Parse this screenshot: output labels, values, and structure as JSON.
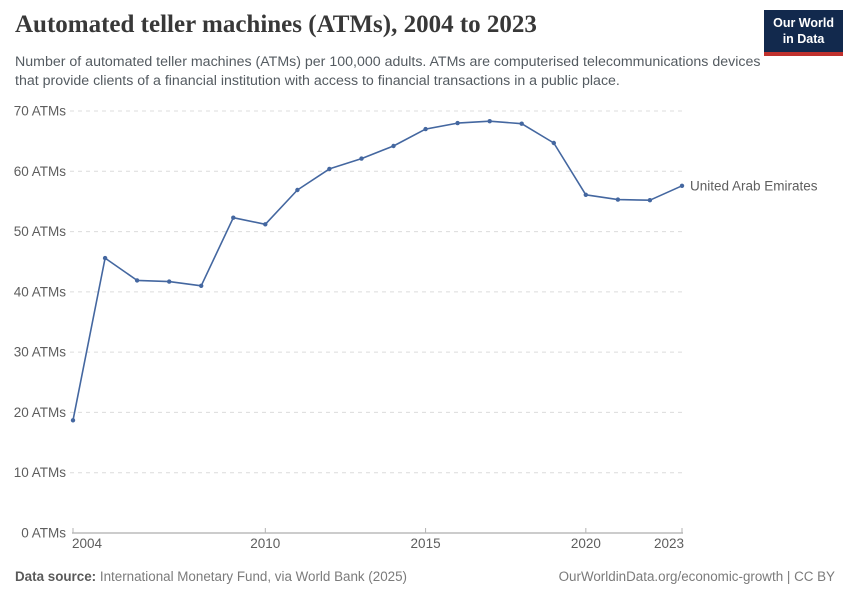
{
  "header": {
    "title": "Automated teller machines (ATMs), 2004 to 2023",
    "subtitle": "Number of automated teller machines (ATMs) per 100,000 adults. ATMs are computerised telecommunications devices that provide clients of a financial institution with access to financial transactions in a public place.",
    "logo": {
      "line1": "Our World",
      "line2": "in Data",
      "bg_color": "#12294D",
      "accent_color": "#C0312D"
    }
  },
  "chart_data": {
    "type": "line",
    "title": "Automated teller machines (ATMs), 2004 to 2023",
    "x": [
      2004,
      2005,
      2006,
      2007,
      2008,
      2009,
      2010,
      2011,
      2012,
      2013,
      2014,
      2015,
      2016,
      2017,
      2018,
      2019,
      2020,
      2021,
      2022,
      2023
    ],
    "series": [
      {
        "name": "United Arab Emirates",
        "color": "#4467A0",
        "values": [
          18.7,
          45.6,
          41.9,
          41.7,
          41.0,
          52.3,
          51.2,
          56.9,
          60.4,
          62.1,
          64.2,
          67.0,
          68.0,
          68.3,
          67.9,
          64.7,
          56.1,
          55.3,
          55.2,
          57.6
        ]
      }
    ],
    "xlabel": "",
    "ylabel": "",
    "ylim": [
      0,
      70
    ],
    "yticks": [
      0,
      10,
      20,
      30,
      40,
      50,
      60,
      70
    ],
    "ytick_suffix": " ATMs",
    "xticks": [
      2004,
      2010,
      2015,
      2020,
      2023
    ],
    "grid": "horizontal-dashed",
    "legend": "line-end-label"
  },
  "footer": {
    "source_label": "Data source:",
    "source_text": "International Monetary Fund, via World Bank (2025)",
    "link_text": "OurWorldinData.org/economic-growth | CC BY"
  }
}
